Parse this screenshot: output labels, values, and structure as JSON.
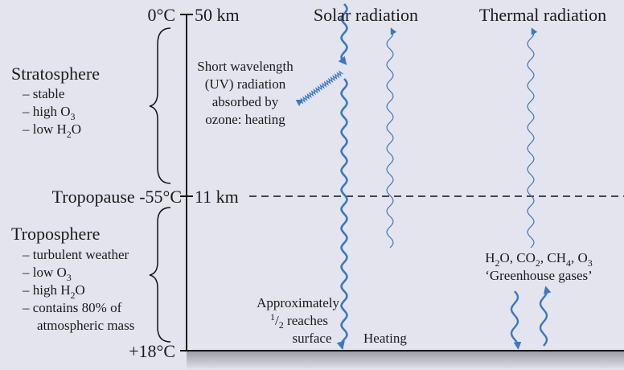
{
  "top": {
    "temp": "0°C",
    "height": "50 km",
    "solar": "Solar radiation",
    "thermal": "Thermal radiation"
  },
  "stratosphere": {
    "title": "Stratosphere",
    "stable": "– stable",
    "high_o": [
      "– high O",
      "3"
    ],
    "low_h2o": [
      "– low H",
      "2",
      "O"
    ]
  },
  "uv": [
    "Short wavelength",
    "(UV) radiation",
    "absorbed by",
    "ozone: heating"
  ],
  "tropopause": {
    "label": "Tropopause -55°C",
    "height": "11 km"
  },
  "troposphere": {
    "title": "Troposphere",
    "turbulent": "– turbulent weather",
    "low_o": [
      "– low O",
      "3"
    ],
    "high_h2o": [
      "– high H",
      "2",
      "O"
    ],
    "contains": "– contains 80% of",
    "mass": "atmospheric mass"
  },
  "surface_note": {
    "line1": "Approximately",
    "line2": [
      "1",
      "/",
      "2",
      " reaches"
    ],
    "line3": "surface",
    "heating": "Heating"
  },
  "greenhouse": {
    "formula": [
      "H",
      "2",
      "O, CO",
      "2",
      ", CH",
      "4",
      ", O",
      "3"
    ],
    "label": "‘Greenhouse gases’"
  },
  "bottom": {
    "temp": "+18°C"
  }
}
